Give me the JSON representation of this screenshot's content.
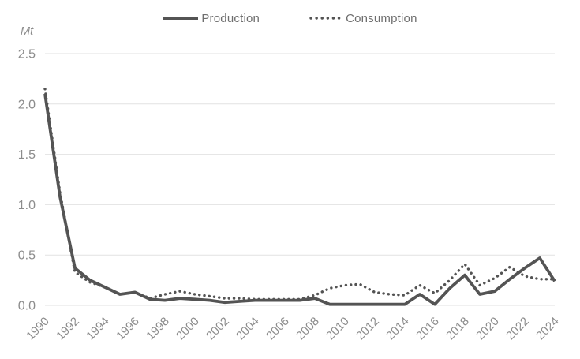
{
  "chart_data": {
    "type": "line",
    "title": "",
    "ylabel": "Mt",
    "ylim": [
      0,
      2.5
    ],
    "yticks": [
      "0.0",
      "0.5",
      "1.0",
      "1.5",
      "2.0",
      "2.5"
    ],
    "xticks": [
      1990,
      1992,
      1994,
      1996,
      1998,
      2000,
      2002,
      2004,
      2006,
      2008,
      2010,
      2012,
      2014,
      2016,
      2018,
      2020,
      2022,
      2024
    ],
    "x": [
      1990,
      1991,
      1992,
      1993,
      1994,
      1995,
      1996,
      1997,
      1998,
      1999,
      2000,
      2001,
      2002,
      2003,
      2004,
      2005,
      2006,
      2007,
      2008,
      2009,
      2010,
      2011,
      2012,
      2013,
      2014,
      2015,
      2016,
      2017,
      2018,
      2019,
      2020,
      2021,
      2022,
      2023,
      2024
    ],
    "grid": true,
    "legend_position": "top",
    "series": [
      {
        "name": "Production",
        "style": "solid",
        "values": [
          2.1,
          1.08,
          0.37,
          0.25,
          0.18,
          0.11,
          0.13,
          0.06,
          0.05,
          0.07,
          0.06,
          0.05,
          0.03,
          0.04,
          0.05,
          0.05,
          0.05,
          0.05,
          0.07,
          0.01,
          0.01,
          0.01,
          0.01,
          0.01,
          0.01,
          0.11,
          0.01,
          0.17,
          0.3,
          0.11,
          0.14,
          0.26,
          0.37,
          0.47,
          0.24
        ]
      },
      {
        "name": "Consumption",
        "style": "dotted",
        "values": [
          2.15,
          1.12,
          0.33,
          0.23,
          0.18,
          0.11,
          0.13,
          0.07,
          0.11,
          0.14,
          0.11,
          0.09,
          0.07,
          0.07,
          0.06,
          0.06,
          0.06,
          0.06,
          0.1,
          0.17,
          0.2,
          0.21,
          0.13,
          0.11,
          0.1,
          0.2,
          0.12,
          0.25,
          0.41,
          0.2,
          0.27,
          0.38,
          0.29,
          0.26,
          0.26
        ]
      }
    ]
  },
  "colors": {
    "line": "#545454",
    "grid": "#e2e2e2",
    "tick_text": "#8c8c8c",
    "legend_text": "#6e6e6e",
    "background": "#ffffff"
  }
}
